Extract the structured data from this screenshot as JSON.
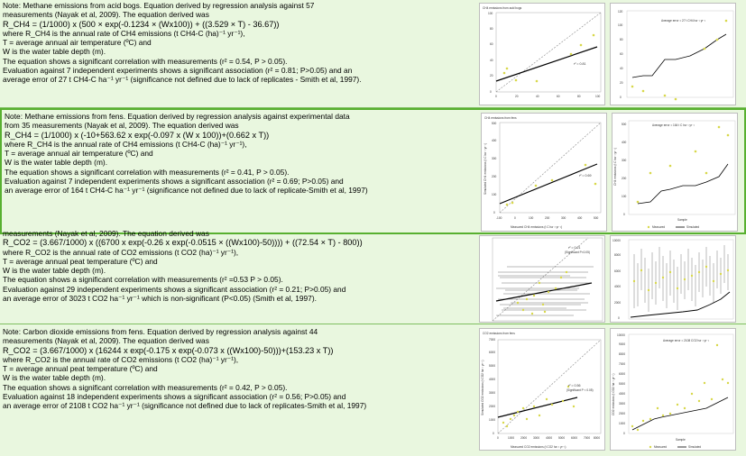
{
  "rows": [
    {
      "lines": [
        "Note: Methane emissions from acid bogs. Equation derived by regression analysis against 57",
        "measurements (Nayak et al, 2009). The equation derived was",
        "R_CH4 = (1/1000) x (500 × exp(-0.1234 × (Wx100)) + ((3.529 × T) - 36.67))",
        "where R_CH4 is the annual rate of CH4 emissions (t CH4-C (ha)⁻¹ yr⁻¹),",
        "T = average annual air temperature (ºC) and",
        "W is the water table depth (m).",
        "The equation shows a significant correlation with measurements (r² = 0.54, P > 0.05).",
        "Evaluation against 7 independent experiments shows a significant association (r² = 0.81; P>0.05) and an",
        "average error of 27 t CH4-C ha⁻¹ yr⁻¹ (significance not defined due to lack of replicates - Smith et al, 1997)."
      ],
      "scatter": {
        "title": "CH4 emissions from acid bogs",
        "r2": "r² = 0.81",
        "xticks": [
          "0",
          "20",
          "40",
          "60",
          "80",
          "100"
        ],
        "yticks": [
          "0",
          "20",
          "40",
          "60",
          "80",
          "100"
        ]
      },
      "series": {
        "annot": "Average error = 27 t CH4 ha⁻¹ yr⁻¹",
        "yticks": [
          "0",
          "20",
          "40",
          "60",
          "80",
          "100",
          "120"
        ]
      }
    },
    {
      "lines": [
        "Note: Methane emissions from fens. Equation derived by regression analysis against experimental data",
        "from 35 measurements (Nayak et al, 2009). The equation derived was",
        "R_CH4 = (1/1000) x (-10+563.62 x exp(-0.097 x (W x 100))+(0.662 x T))",
        "where R_CH4 is the annual rate of CH4 emissions (t CH4-C (ha)⁻¹ yr⁻¹),",
        "T = average annual air temperature (ºC) and",
        "W is the water table depth (m).",
        "The equation shows a significant correlation with measurements (r² = 0.41, P > 0.05).",
        "Evaluation against 7 independent experiments shows a significant association (r² = 0.69; P>0.05) and",
        "an average error of 164 t CH4-C ha⁻¹ yr⁻¹ (significance not defined due to lack of replicate-Smith et al, 1997)"
      ],
      "scatter": {
        "title": "CH4 emissions from fens",
        "r2": "r² = 0.69",
        "xlabel": "Measured CH4 emissions (t C ha⁻¹ yr⁻¹)",
        "ylabel": "Simulated CH4 emissions (t C ha⁻¹ yr⁻¹)",
        "xticks": [
          "-100",
          "0",
          "100",
          "200",
          "300",
          "400",
          "500"
        ],
        "yticks": [
          "0",
          "100",
          "200",
          "300",
          "400",
          "500"
        ]
      },
      "series": {
        "annot": "Average error = 164 t C ha⁻¹ yr⁻¹",
        "xlabel": "Sample",
        "ylabel": "CH4 emissions (t C ha⁻¹ yr⁻¹)",
        "yticks": [
          "0",
          "100",
          "200",
          "300",
          "400",
          "500"
        ],
        "legend": [
          "Measured",
          "Simulated"
        ]
      }
    },
    {
      "lines": [
        "measurements (Nayak et al, 2009). The equation derived was",
        "R_CO2 = (3.667/1000) x ((6700 x exp(-0.26 x exp(-0.0515 × ((Wx100)-50)))) + ((72.54 × T) - 800))",
        "where R_CO2 is the annual rate of CO2 emissions (t CO2 (ha)⁻¹ yr⁻¹),",
        "T = average annual peat temperature (ºC) and",
        "W is the water table depth (m).",
        "The equation shows a significant correlation with measurements (r² =0.53 P > 0.05).",
        "Evaluation against 29 independent experiments shows a significant association (r² = 0.21; P>0.05) and",
        "an average error of 3023 t CO2 ha⁻¹ yr⁻¹ which is non-significant (P<0.05) (Smith et al, 1997)."
      ],
      "scatter": {
        "r2": "r² = 0.21",
        "sig": "(Significant P<0.05)"
      },
      "series": {
        "yticks": [
          "0",
          "2000",
          "4000",
          "6000",
          "8000",
          "10000"
        ]
      }
    },
    {
      "lines": [
        "Note: Carbon dioxide emissions from fens. Equation derived by regression analysis against 44",
        "measurements (Nayak et al, 2009). The equation derived was",
        "R_CO2 = (3.667/1000) x (16244 x exp(-0.175 x exp(-0.073 x ((Wx100)-50)))+(153.23 x T))",
        "where R_CO2 is the annual rate of CO2 emissions (t CO2 (ha)⁻¹ yr⁻¹),",
        "T = average annual peat temperature (ºC) and",
        "W is the water table depth (m).",
        "The equation shows a significant correlation with measurements (r² = 0.42, P > 0.05).",
        "Evaluation against 18 independent experiments shows a significant association (r² = 0.56; P>0.05) and",
        "an average error of 2108 t CO2 ha⁻¹ yr⁻¹ (significance not defined due to lack of replicates-Smith et al, 1997)"
      ],
      "scatter": {
        "title": "CO2 emissions from fens",
        "r2": "r² = 0.56",
        "sig": "(Significant P < 0.05)",
        "xlabel": "Measured CO2 emissions (t CO2 ha⁻¹ yr⁻¹)",
        "ylabel": "Simulated CO2 emissions (t CO2 ha⁻¹ yr⁻¹)",
        "xticks": [
          "0",
          "1000",
          "2000",
          "3000",
          "4000",
          "5000",
          "6000",
          "7000",
          "8000"
        ],
        "yticks": [
          "0",
          "1000",
          "2000",
          "3000",
          "4000",
          "5000",
          "6000",
          "7000"
        ]
      },
      "series": {
        "annot": "Average error = 2108 CO2 ha⁻¹ yr⁻¹",
        "xlabel": "Sample",
        "ylabel": "CO2 emissions (t CO2 ha⁻¹ yr⁻¹)",
        "yticks": [
          "0",
          "1000",
          "2000",
          "3000",
          "4000",
          "5000",
          "6000",
          "7000",
          "8000",
          "9000",
          "10000"
        ],
        "legend": [
          "Measured",
          "Simulated"
        ]
      }
    }
  ],
  "colors": {
    "row_bg": "#e9f7df",
    "border": "#58b030",
    "measured": "#d8d84a",
    "simulated": "#000000"
  }
}
